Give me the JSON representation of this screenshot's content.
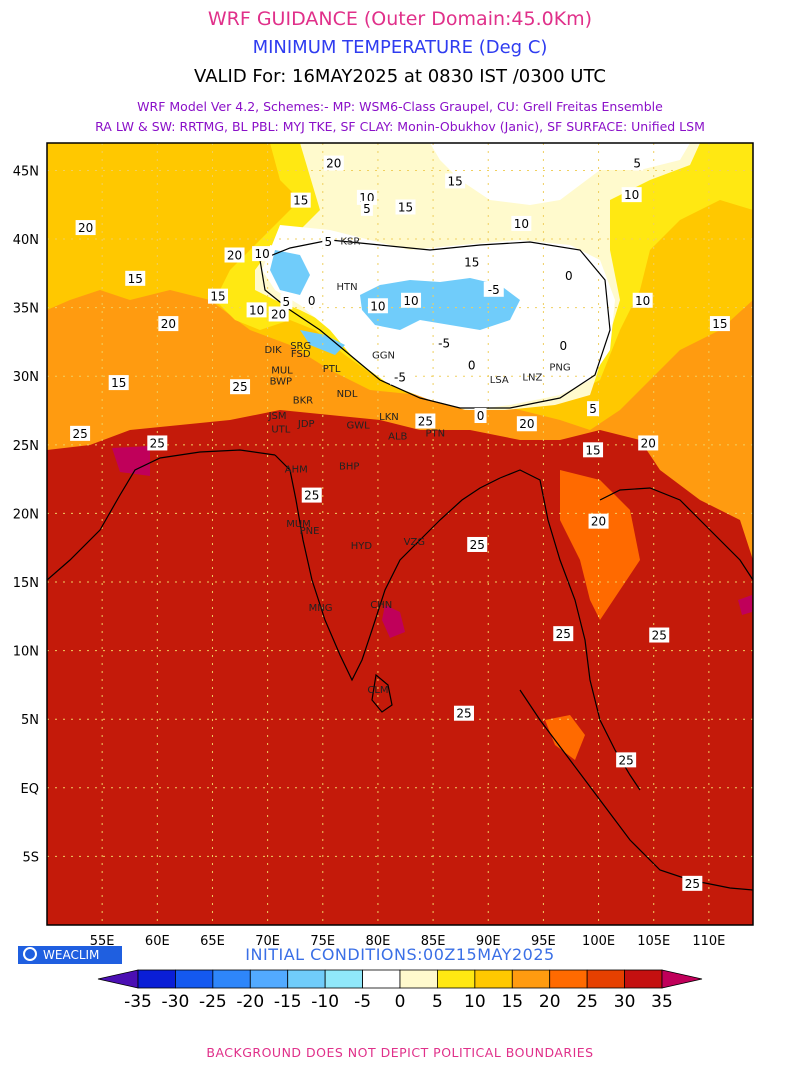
{
  "titles": {
    "line1": "WRF GUIDANCE (Outer Domain:45.0Km)",
    "line2": "MINIMUM TEMPERATURE (Deg C)",
    "line3": "VALID For: 16MAY2025 at 0830 IST /0300 UTC",
    "line4": "WRF Model Ver 4.2, Schemes:- MP: WSM6-Class Graupel, CU: Grell Freitas Ensemble",
    "line5": "RA LW & SW: RRTMG, BL PBL: MYJ TKE, SF CLAY: Monin-Obukhov (Janic), SF SURFACE: Unified LSM"
  },
  "axes": {
    "lat_labels": [
      "45N",
      "40N",
      "35N",
      "30N",
      "25N",
      "20N",
      "15N",
      "10N",
      "5N",
      "EQ",
      "5S"
    ],
    "lon_labels": [
      "55E",
      "60E",
      "65E",
      "70E",
      "75E",
      "80E",
      "85E",
      "90E",
      "95E",
      "100E",
      "105E",
      "110E"
    ]
  },
  "contour_labels": [
    {
      "text": "20",
      "lon": 76,
      "lat": 45.5
    },
    {
      "text": "15",
      "lon": 73,
      "lat": 42.8
    },
    {
      "text": "10",
      "lon": 79,
      "lat": 43
    },
    {
      "text": "15",
      "lon": 82.5,
      "lat": 42.3
    },
    {
      "text": "15",
      "lon": 87,
      "lat": 44.2
    },
    {
      "text": "5",
      "lon": 79,
      "lat": 42.2
    },
    {
      "text": "5",
      "lon": 103.5,
      "lat": 45.5
    },
    {
      "text": "10",
      "lon": 103,
      "lat": 43.2
    },
    {
      "text": "10",
      "lon": 93,
      "lat": 41.1
    },
    {
      "text": "20",
      "lon": 53.5,
      "lat": 40.8
    },
    {
      "text": "20",
      "lon": 67,
      "lat": 38.8
    },
    {
      "text": "10",
      "lon": 69.5,
      "lat": 38.9
    },
    {
      "text": "5",
      "lon": 75.5,
      "lat": 39.8
    },
    {
      "text": "15",
      "lon": 58,
      "lat": 37.1
    },
    {
      "text": "15",
      "lon": 88.5,
      "lat": 38.3
    },
    {
      "text": "15",
      "lon": 65.5,
      "lat": 35.8
    },
    {
      "text": "10",
      "lon": 69,
      "lat": 34.8
    },
    {
      "text": "20",
      "lon": 71,
      "lat": 34.5
    },
    {
      "text": "5",
      "lon": 71.7,
      "lat": 35.4
    },
    {
      "text": "0",
      "lon": 74,
      "lat": 35.5
    },
    {
      "text": "10",
      "lon": 83,
      "lat": 35.5
    },
    {
      "text": "10",
      "lon": 80,
      "lat": 35.1
    },
    {
      "text": "-5",
      "lon": 90.5,
      "lat": 36.3
    },
    {
      "text": "0",
      "lon": 97.3,
      "lat": 37.3
    },
    {
      "text": "10",
      "lon": 104,
      "lat": 35.5
    },
    {
      "text": "15",
      "lon": 111,
      "lat": 33.8
    },
    {
      "text": "20",
      "lon": 61,
      "lat": 33.8
    },
    {
      "text": "-5",
      "lon": 86,
      "lat": 32.4
    },
    {
      "text": "0",
      "lon": 96.8,
      "lat": 32.2
    },
    {
      "text": "15",
      "lon": 56.5,
      "lat": 29.5
    },
    {
      "text": "25",
      "lon": 67.5,
      "lat": 29.2
    },
    {
      "text": "-5",
      "lon": 82,
      "lat": 29.9
    },
    {
      "text": "0",
      "lon": 88.5,
      "lat": 30.8
    },
    {
      "text": "5",
      "lon": 99.5,
      "lat": 27.6
    },
    {
      "text": "25",
      "lon": 84.3,
      "lat": 26.7
    },
    {
      "text": "0",
      "lon": 89.3,
      "lat": 27.1
    },
    {
      "text": "20",
      "lon": 93.5,
      "lat": 26.5
    },
    {
      "text": "25",
      "lon": 53,
      "lat": 25.8
    },
    {
      "text": "25",
      "lon": 60,
      "lat": 25.1
    },
    {
      "text": "15",
      "lon": 99.5,
      "lat": 24.6
    },
    {
      "text": "20",
      "lon": 104.5,
      "lat": 25.1
    },
    {
      "text": "25",
      "lon": 74,
      "lat": 21.3
    },
    {
      "text": "20",
      "lon": 100,
      "lat": 19.4
    },
    {
      "text": "25",
      "lon": 89,
      "lat": 17.7
    },
    {
      "text": "25",
      "lon": 96.8,
      "lat": 11.2
    },
    {
      "text": "25",
      "lon": 105.5,
      "lat": 11.1
    },
    {
      "text": "25",
      "lon": 87.8,
      "lat": 5.4
    },
    {
      "text": "25",
      "lon": 102.5,
      "lat": 2.0
    },
    {
      "text": "25",
      "lon": 108.5,
      "lat": -7.0
    }
  ],
  "station_labels": [
    {
      "text": "KSR",
      "lon": 77.5,
      "lat": 39.6
    },
    {
      "text": "HTN",
      "lon": 77.2,
      "lat": 36.3
    },
    {
      "text": "GGN",
      "lon": 80.5,
      "lat": 31.3
    },
    {
      "text": "PNG",
      "lon": 96.5,
      "lat": 30.4
    },
    {
      "text": "LSA",
      "lon": 91,
      "lat": 29.5
    },
    {
      "text": "LNZ",
      "lon": 94,
      "lat": 29.7
    },
    {
      "text": "DIK",
      "lon": 70.5,
      "lat": 31.7
    },
    {
      "text": "SRG",
      "lon": 73,
      "lat": 32.0
    },
    {
      "text": "FSD",
      "lon": 73,
      "lat": 31.4
    },
    {
      "text": "MUL",
      "lon": 71.3,
      "lat": 30.2
    },
    {
      "text": "BWP",
      "lon": 71.2,
      "lat": 29.4
    },
    {
      "text": "PTL",
      "lon": 75.8,
      "lat": 30.3
    },
    {
      "text": "BKR",
      "lon": 73.2,
      "lat": 28.0
    },
    {
      "text": "NDL",
      "lon": 77.2,
      "lat": 28.5
    },
    {
      "text": "JSM",
      "lon": 70.9,
      "lat": 26.9
    },
    {
      "text": "JDP",
      "lon": 73.5,
      "lat": 26.3
    },
    {
      "text": "UTL",
      "lon": 71.2,
      "lat": 25.9
    },
    {
      "text": "GWL",
      "lon": 78.2,
      "lat": 26.2
    },
    {
      "text": "LKN",
      "lon": 81,
      "lat": 26.8
    },
    {
      "text": "ALB",
      "lon": 81.8,
      "lat": 25.4
    },
    {
      "text": "PTN",
      "lon": 85.2,
      "lat": 25.6
    },
    {
      "text": "AHM",
      "lon": 72.6,
      "lat": 23.0
    },
    {
      "text": "BHP",
      "lon": 77.4,
      "lat": 23.2
    },
    {
      "text": "MUM",
      "lon": 72.8,
      "lat": 19.0
    },
    {
      "text": "PNE",
      "lon": 73.8,
      "lat": 18.5
    },
    {
      "text": "HYD",
      "lon": 78.5,
      "lat": 17.4
    },
    {
      "text": "VZG",
      "lon": 83.3,
      "lat": 17.7
    },
    {
      "text": "MNG",
      "lon": 74.8,
      "lat": 12.9
    },
    {
      "text": "CHN",
      "lon": 80.3,
      "lat": 13.1
    },
    {
      "text": "CLM",
      "lon": 80.0,
      "lat": 6.9
    }
  ],
  "map_extent": {
    "lon_min": 50,
    "lon_max": 114,
    "lat_min": -10,
    "lat_max": 47
  },
  "colors": {
    "lt_neg35": "#4b0fb3",
    "neg35_neg30": "#0a1ed6",
    "neg30_neg25": "#1459f0",
    "neg25_neg20": "#2e86fa",
    "neg20_neg15": "#52aaff",
    "neg15_neg10": "#70ccfa",
    "neg10_neg5": "#90e8fa",
    "neg5_0": "#ffffff",
    "0_5": "#fffacd",
    "5_10": "#ffe812",
    "10_15": "#ffc800",
    "15_20": "#ff9b10",
    "20_25": "#ff6a00",
    "25_30": "#e64000",
    "30_35": "#c41010",
    "gt_35": "#c0005a",
    "ocean": "#c41a0a"
  },
  "colorbar": {
    "labels": [
      "-35",
      "-30",
      "-25",
      "-20",
      "-15",
      "-10",
      "-5",
      "0",
      "5",
      "10",
      "15",
      "20",
      "25",
      "30",
      "35"
    ]
  },
  "logo": {
    "text": "WEACLIM"
  },
  "initial_conditions": "INITIAL CONDITIONS:00Z15MAY2025",
  "footer": "BACKGROUND DOES NOT DEPICT POLITICAL BOUNDARIES"
}
